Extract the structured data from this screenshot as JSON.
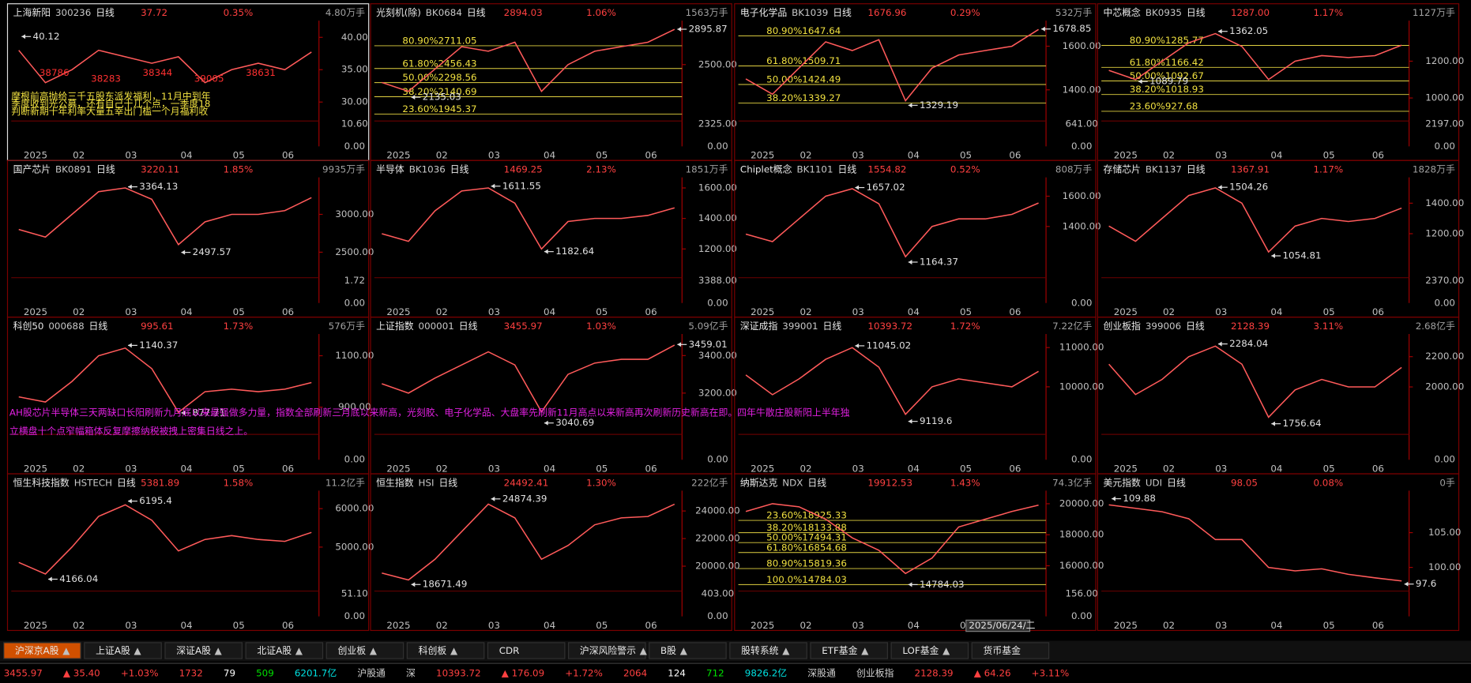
{
  "ui": {
    "dates": [
      "2025",
      "02",
      "03",
      "04",
      "05",
      "06"
    ],
    "day_label": "日线"
  },
  "panels": [
    {
      "name": "上海新阳",
      "code": "300236",
      "price": "37.72",
      "pct": "0.35%",
      "vol": "4.80万手",
      "ylim": [
        27.5,
        42
      ],
      "yticks": [
        {
          "value": 40,
          "label": "40.00"
        },
        {
          "value": 35,
          "label": "35.00"
        },
        {
          "value": 30,
          "label": "30.00"
        }
      ],
      "vol_ticks": [
        "10.60",
        "0.00"
      ],
      "high": 40.12,
      "close": [
        38,
        33,
        35,
        38,
        37,
        36,
        37,
        33,
        35,
        36,
        35,
        37.72
      ],
      "notes": [
        "38786",
        "38283",
        "38344",
        "39005",
        "38631"
      ],
      "comments": [
        "摩根前高抛给三千五股东派发福利，11月中到年",
        "季度收到光公募，还有自己十几个点，一季度18",
        "判断新期十年利率大量五幸出门槛一个月福利收"
      ]
    },
    {
      "name": "光刻机(除)",
      "code": "BK0684",
      "price": "2894.03",
      "pct": "1.06%",
      "vol": "1563万手",
      "ylim": [
        1900,
        2950
      ],
      "yticks": [
        {
          "value": 2500,
          "label": "2500.00"
        }
      ],
      "vol_ticks": [
        "2325.00",
        "0.00"
      ],
      "high": 2895.87,
      "low": 2135.03,
      "fib": [
        {
          "label": "80.90%",
          "value": 2711.05
        },
        {
          "label": "61.80%",
          "value": 2456.43
        },
        {
          "label": "50.00%",
          "value": 2298.56
        },
        {
          "label": "38.20%",
          "value": 2140.69
        },
        {
          "label": "23.60%",
          "value": 1945.37
        }
      ],
      "close": [
        2300,
        2200,
        2450,
        2700,
        2650,
        2750,
        2200,
        2500,
        2650,
        2700,
        2750,
        2894.03
      ]
    },
    {
      "name": "电子化学品",
      "code": "BK1039",
      "price": "1676.96",
      "pct": "0.29%",
      "vol": "532万手",
      "ylim": [
        1270,
        1700
      ],
      "yticks": [
        {
          "value": 1600,
          "label": "1600.00"
        },
        {
          "value": 1400,
          "label": "1400.00"
        }
      ],
      "vol_ticks": [
        "641.00",
        "0.00"
      ],
      "high": 1678.85,
      "low": 1329.19,
      "fib": [
        {
          "label": "80.90%",
          "value": 1647.64
        },
        {
          "label": "61.80%",
          "value": 1509.71
        },
        {
          "label": "50.00%",
          "value": 1424.49
        },
        {
          "label": "38.20%",
          "value": 1339.27
        }
      ],
      "close": [
        1450,
        1380,
        1500,
        1620,
        1580,
        1630,
        1350,
        1500,
        1560,
        1580,
        1600,
        1676.96
      ]
    },
    {
      "name": "中芯概念",
      "code": "BK0935",
      "price": "1287.00",
      "pct": "1.17%",
      "vol": "1127万手",
      "ylim": [
        890,
        1400
      ],
      "yticks": [
        {
          "value": 1200,
          "label": "1200.00"
        },
        {
          "value": 1000,
          "label": "1000.00"
        }
      ],
      "vol_ticks": [
        "2197.00",
        "0.00"
      ],
      "high": 1362.05,
      "low": 1089.79,
      "fib": [
        {
          "label": "80.90%",
          "value": 1285.77
        },
        {
          "label": "61.80%",
          "value": 1166.42
        },
        {
          "label": "50.00%",
          "value": 1092.67
        },
        {
          "label": "38.20%",
          "value": 1018.93
        },
        {
          "label": "23.60%",
          "value": 927.68
        }
      ],
      "close": [
        1150,
        1100,
        1200,
        1300,
        1350,
        1280,
        1100,
        1200,
        1230,
        1220,
        1230,
        1287
      ]
    },
    {
      "name": "国产芯片",
      "code": "BK0891",
      "price": "3220.11",
      "pct": "1.85%",
      "vol": "9935万手",
      "ylim": [
        2200,
        3440
      ],
      "yticks": [
        {
          "value": 3000,
          "label": "3000.00"
        },
        {
          "value": 2500,
          "label": "2500.00"
        }
      ],
      "vol_ticks": [
        "1.72",
        "0.00"
      ],
      "high": 3364.13,
      "low": 2497.57,
      "close": [
        2800,
        2700,
        3000,
        3300,
        3350,
        3200,
        2600,
        2900,
        3000,
        3000,
        3050,
        3220.11
      ]
    },
    {
      "name": "半导体",
      "code": "BK1036",
      "price": "1469.25",
      "pct": "2.13%",
      "vol": "1851万手",
      "ylim": [
        1030,
        1645
      ],
      "yticks": [
        {
          "value": 1600,
          "label": "1600.00"
        },
        {
          "value": 1400,
          "label": "1400.00"
        },
        {
          "value": 1200,
          "label": "1200.00"
        }
      ],
      "vol_ticks": [
        "3388.00",
        "0.00"
      ],
      "high": 1611.55,
      "low": 1182.64,
      "close": [
        1300,
        1250,
        1450,
        1580,
        1600,
        1500,
        1200,
        1380,
        1400,
        1400,
        1420,
        1469.25
      ]
    },
    {
      "name": "Chiplet概念",
      "code": "BK1101",
      "price": "1554.82",
      "pct": "0.52%",
      "vol": "808万手",
      "ylim": [
        1080,
        1700
      ],
      "yticks": [
        {
          "value": 1600,
          "label": "1600.00"
        },
        {
          "value": 1400,
          "label": "1400.00"
        }
      ],
      "vol_ticks": [
        "0.00"
      ],
      "high": 1657.02,
      "low": 1164.37,
      "close": [
        1350,
        1300,
        1450,
        1600,
        1650,
        1550,
        1200,
        1400,
        1450,
        1450,
        1480,
        1554.82
      ]
    },
    {
      "name": "存储芯片",
      "code": "BK1137",
      "price": "1367.91",
      "pct": "1.17%",
      "vol": "1828万手",
      "ylim": [
        930,
        1545
      ],
      "yticks": [
        {
          "value": 1400,
          "label": "1400.00"
        },
        {
          "value": 1200,
          "label": "1200.00"
        }
      ],
      "vol_ticks": [
        "2370.00",
        "0.00"
      ],
      "high": 1504.26,
      "low": 1054.81,
      "close": [
        1250,
        1150,
        1300,
        1450,
        1500,
        1400,
        1080,
        1250,
        1300,
        1280,
        1300,
        1367.91
      ]
    },
    {
      "name": "科创50",
      "code": "000688",
      "price": "995.61",
      "pct": "1.73%",
      "vol": "576万手",
      "ylim": [
        805,
        1170
      ],
      "yticks": [
        {
          "value": 1100,
          "label": "1100.00"
        },
        {
          "value": 900,
          "label": "900.00"
        }
      ],
      "vol_ticks": [
        "0.00"
      ],
      "high": 1140.37,
      "low": 877.71,
      "close": [
        940,
        920,
        1000,
        1100,
        1130,
        1050,
        880,
        960,
        970,
        960,
        970,
        995.61
      ]
    },
    {
      "name": "上证指数",
      "code": "000001",
      "price": "3455.97",
      "pct": "1.03%",
      "vol": "5.09亿手",
      "ylim": [
        2995,
        3495
      ],
      "yticks": [
        {
          "value": 3400,
          "label": "3400.00"
        },
        {
          "value": 3200,
          "label": "3200.00"
        }
      ],
      "vol_ticks": [
        "0.00"
      ],
      "high": 3459.01,
      "low": 3040.69,
      "close": [
        3250,
        3200,
        3280,
        3350,
        3420,
        3350,
        3100,
        3300,
        3360,
        3380,
        3380,
        3455.97
      ]
    },
    {
      "name": "深证成指",
      "code": "399001",
      "price": "10393.72",
      "pct": "1.72%",
      "vol": "7.22亿手",
      "ylim": [
        8860,
        11250
      ],
      "yticks": [
        {
          "value": 11000,
          "label": "11000.00"
        },
        {
          "value": 10000,
          "label": "10000.00"
        }
      ],
      "vol_ticks": [
        "0.00"
      ],
      "high": 11045.02,
      "low": 9119.6,
      "close": [
        10300,
        9800,
        10200,
        10700,
        11000,
        10500,
        9300,
        10000,
        10200,
        10100,
        10000,
        10393.72
      ]
    },
    {
      "name": "创业板指",
      "code": "399006",
      "price": "2128.39",
      "pct": "3.11%",
      "vol": "2.68亿手",
      "ylim": [
        1705,
        2325
      ],
      "yticks": [
        {
          "value": 2200,
          "label": "2200.00"
        },
        {
          "value": 2000,
          "label": "2000.00"
        }
      ],
      "vol_ticks": [
        "0.00"
      ],
      "high": 2284.04,
      "low": 1756.64,
      "close": [
        2150,
        1950,
        2050,
        2200,
        2270,
        2150,
        1800,
        1980,
        2050,
        2000,
        2000,
        2128.39
      ]
    },
    {
      "name": "恒生科技指数",
      "code": "HSTECH",
      "price": "5381.89",
      "pct": "1.58%",
      "vol": "11.2亿手",
      "ylim": [
        3930,
        6370
      ],
      "yticks": [
        {
          "value": 6000,
          "label": "6000.00"
        },
        {
          "value": 5000,
          "label": "5000.00"
        }
      ],
      "vol_ticks": [
        "51.10",
        "0.00"
      ],
      "high": 6195.4,
      "low": 4166.04,
      "close": [
        4600,
        4300,
        5000,
        5800,
        6100,
        5700,
        4900,
        5200,
        5300,
        5200,
        5150,
        5381.89
      ]
    },
    {
      "name": "恒生指数",
      "code": "HSI",
      "price": "24492.41",
      "pct": "1.30%",
      "vol": "222亿手",
      "ylim": [
        18400,
        25200
      ],
      "yticks": [
        {
          "value": 24000,
          "label": "24000.00"
        },
        {
          "value": 22000,
          "label": "22000.00"
        },
        {
          "value": 20000,
          "label": "20000.00"
        }
      ],
      "vol_ticks": [
        "403.00",
        "0.00"
      ],
      "high": 24874.39,
      "low": 18671.49,
      "close": [
        19500,
        19000,
        20500,
        22500,
        24500,
        23500,
        20500,
        21500,
        23000,
        23500,
        23600,
        24492.41
      ]
    },
    {
      "name": "纳斯达克",
      "code": "NDX",
      "price": "19912.53",
      "pct": "1.43%",
      "vol": "74.3亿手",
      "ylim": [
        14550,
        20600
      ],
      "yticks": [
        {
          "value": 20000,
          "label": "20000.00"
        },
        {
          "value": 18000,
          "label": "18000.00"
        },
        {
          "value": 16000,
          "label": "16000.00"
        }
      ],
      "vol_ticks": [
        "156.00",
        "0.00"
      ],
      "low": 14784.03,
      "fib": [
        {
          "label": "23.60%",
          "value": 18925.33
        },
        {
          "label": "38.20%",
          "value": 18133.88
        },
        {
          "label": "50.00%",
          "value": 17494.31
        },
        {
          "label": "61.80%",
          "value": 16854.68
        },
        {
          "label": "80.90%",
          "value": 15819.36
        },
        {
          "label": "100.0%",
          "value": 14784.03
        }
      ],
      "close": [
        19500,
        20000,
        19800,
        19000,
        17800,
        17000,
        15500,
        16500,
        18500,
        19000,
        19500,
        19912.53
      ],
      "cursor": "2025/06/24/二"
    },
    {
      "name": "美元指数",
      "code": "UDI",
      "price": "98.05",
      "pct": "0.08%",
      "vol": "0手",
      "ylim": [
        97,
        110.5
      ],
      "yticks": [
        {
          "value": 105,
          "label": "105.00"
        },
        {
          "value": 100,
          "label": "100.00"
        }
      ],
      "vol_ticks": [],
      "high": 109.88,
      "low": 97.6,
      "close": [
        109,
        108.5,
        108,
        107,
        104,
        104,
        100,
        99.5,
        99.8,
        99,
        98.5,
        98.05
      ]
    }
  ],
  "overlay": [
    "AH股芯片半导体三天两缺口长阳刷新九月底以来最强做多力量，指数全部刷新三月底以来新高，光刻胶、电子化学品、大盘率先刷新11月高点以来新高再次刷新历史新高在即。四年牛散庄股新阳上半年独",
    "立横盘十个点窄幅箱体反复摩擦纳税被拽上密集日线之上。"
  ],
  "tabs": [
    {
      "label": "沪深京A股",
      "arrow": "▲"
    },
    {
      "label": "上证A股",
      "arrow": "▲"
    },
    {
      "label": "深证A股",
      "arrow": "▲"
    },
    {
      "label": "北证A股",
      "arrow": "▲"
    },
    {
      "label": "创业板",
      "arrow": "▲"
    },
    {
      "label": "科创板",
      "arrow": "▲"
    },
    {
      "label": "CDR"
    },
    {
      "label": "沪深风险警示",
      "arrow": "▲"
    },
    {
      "label": "B股",
      "arrow": "▲"
    },
    {
      "label": "股转系统",
      "arrow": "▲"
    },
    {
      "label": "ETF基金",
      "arrow": "▲"
    },
    {
      "label": "LOF基金",
      "arrow": "▲"
    },
    {
      "label": "货币基金"
    }
  ],
  "status": [
    {
      "text": "3455.97",
      "color": "#ff4040"
    },
    {
      "text": "▲ 35.40",
      "color": "#ff4040"
    },
    {
      "text": "+1.03%",
      "color": "#ff4040"
    },
    {
      "text": "1732",
      "color": "#ff4040"
    },
    {
      "text": "79",
      "color": "#ffffff"
    },
    {
      "text": "509",
      "color": "#00e000"
    },
    {
      "text": "6201.7亿",
      "color": "#00e0e0"
    },
    {
      "text": "沪股通",
      "color": "#d0d0d0"
    },
    {
      "text": "深",
      "color": "#d0d0d0"
    },
    {
      "text": "10393.72",
      "color": "#ff4040"
    },
    {
      "text": "▲ 176.09",
      "color": "#ff4040"
    },
    {
      "text": "+1.72%",
      "color": "#ff4040"
    },
    {
      "text": "2064",
      "color": "#ff4040"
    },
    {
      "text": "124",
      "color": "#ffffff"
    },
    {
      "text": "712",
      "color": "#00e000"
    },
    {
      "text": "9826.2亿",
      "color": "#00e0e0"
    },
    {
      "text": "深股通",
      "color": "#d0d0d0"
    },
    {
      "text": "创业板指",
      "color": "#d0d0d0"
    },
    {
      "text": "2128.39",
      "color": "#ff4040"
    },
    {
      "text": "▲ 64.26",
      "color": "#ff4040"
    },
    {
      "text": "+3.11%",
      "color": "#ff4040"
    }
  ]
}
